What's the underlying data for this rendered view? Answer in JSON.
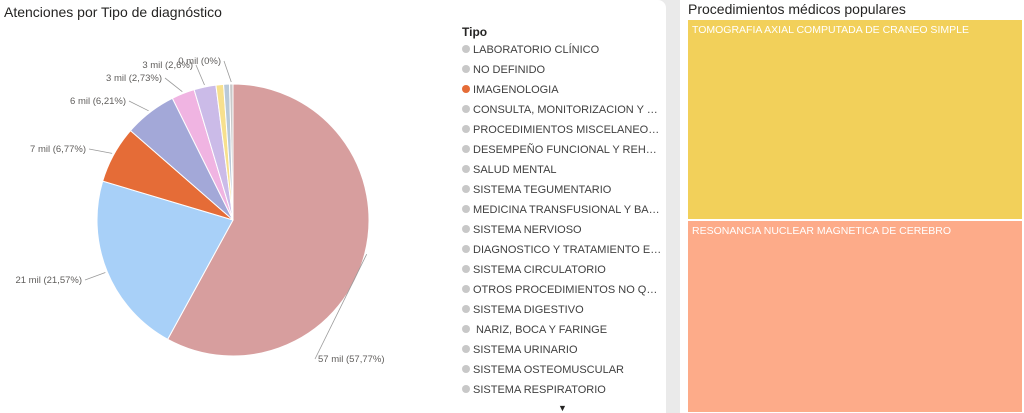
{
  "chart_data": [
    {
      "type": "pie",
      "title": "Atenciones por Tipo de diagnóstico",
      "legend_title": "Tipo",
      "legend_placement": "right",
      "slices": [
        {
          "label": "LABORATORIO CLÍNICO",
          "value": 57.77,
          "data_label": "57 mil (57,77%)",
          "color": "#d79e9e"
        },
        {
          "label": "NO DEFINIDO",
          "value": 21.57,
          "data_label": "21 mil (21,57%)",
          "color": "#a8d0f8"
        },
        {
          "label": "IMAGENOLOGIA",
          "value": 6.77,
          "data_label": "7 mil (6,77%)",
          "color": "#e56c37"
        },
        {
          "label": "CONSULTA, MONITORIZACION Y PR...",
          "value": 6.21,
          "data_label": "6 mil (6,21%)",
          "color": "#a3a8d8"
        },
        {
          "label": "PROCEDIMIENTOS MISCELANEOS +",
          "value": 2.73,
          "data_label": "3 mil (2,73%)",
          "color": "#f0b4e2"
        },
        {
          "label": "DESEMPEÑO FUNCIONAL Y REHABIL...",
          "value": 2.6,
          "data_label": "3 mil (2,6%)",
          "color": "#cbbbe8"
        },
        {
          "label": "SALUD MENTAL",
          "value": 0.9,
          "data_label": "",
          "color": "#f7e08e"
        },
        {
          "label": "SISTEMA TEGUMENTARIO",
          "value": 0.7,
          "data_label": "",
          "color": "#b9c9d8"
        },
        {
          "label": "MEDICINA TRANSFUSIONAL Y BANC...",
          "value": 0.4,
          "data_label": "0 mil (0%)",
          "color": "#c9c9c9"
        }
      ],
      "legend_items": [
        {
          "label": "LABORATORIO CLÍNICO",
          "color": "#c8c8c8"
        },
        {
          "label": "NO DEFINIDO",
          "color": "#c8c8c8"
        },
        {
          "label": "IMAGENOLOGIA",
          "color": "#e56c37"
        },
        {
          "label": "CONSULTA, MONITORIZACION Y PR...",
          "color": "#c8c8c8"
        },
        {
          "label": "PROCEDIMIENTOS MISCELANEOS +",
          "color": "#c8c8c8"
        },
        {
          "label": "DESEMPEÑO FUNCIONAL Y REHABIL...",
          "color": "#c8c8c8"
        },
        {
          "label": "SALUD MENTAL",
          "color": "#c8c8c8"
        },
        {
          "label": "SISTEMA TEGUMENTARIO",
          "color": "#c8c8c8"
        },
        {
          "label": "MEDICINA TRANSFUSIONAL Y BANC...",
          "color": "#c8c8c8"
        },
        {
          "label": "SISTEMA NERVIOSO",
          "color": "#c8c8c8"
        },
        {
          "label": "DIAGNOSTICO Y TRATAMIENTO EN ...",
          "color": "#c8c8c8"
        },
        {
          "label": "SISTEMA CIRCULATORIO",
          "color": "#c8c8c8"
        },
        {
          "label": "OTROS PROCEDIMIENTOS NO QUIR...",
          "color": "#c8c8c8"
        },
        {
          "label": "SISTEMA DIGESTIVO",
          "color": "#c8c8c8"
        },
        {
          "label": " NARIZ, BOCA Y FARINGE",
          "color": "#c8c8c8"
        },
        {
          "label": "SISTEMA URINARIO",
          "color": "#c8c8c8"
        },
        {
          "label": "SISTEMA OSTEOMUSCULAR",
          "color": "#c8c8c8"
        },
        {
          "label": "SISTEMA RESPIRATORIO",
          "color": "#c8c8c8"
        }
      ],
      "legend_more_icon": "caret-down-icon"
    },
    {
      "type": "treemap",
      "title": "Procedimientos médicos populares",
      "tiles": [
        {
          "label": "TOMOGRAFIA AXIAL COMPUTADA DE CRANEO SIMPLE",
          "share": 0.51,
          "color": "#f2d05a"
        },
        {
          "label": "RESONANCIA NUCLEAR MAGNETICA DE CEREBRO",
          "share": 0.49,
          "color": "#fdab89"
        }
      ]
    }
  ]
}
